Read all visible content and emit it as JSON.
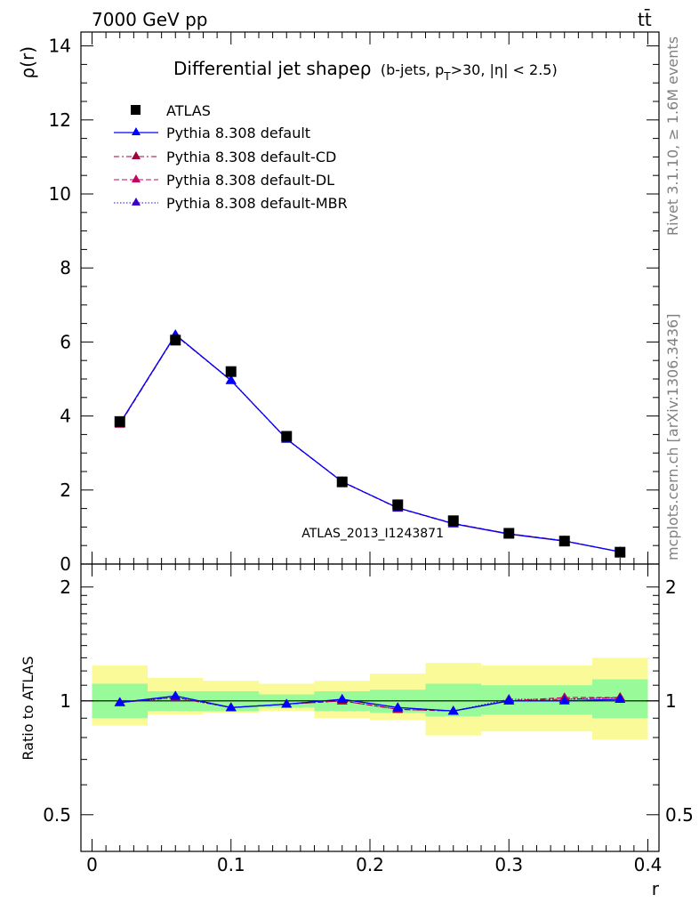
{
  "header": {
    "left": "7000 GeV pp",
    "right": "tt̄"
  },
  "side_labels": {
    "rivet": "Rivet 3.1.10, ≥ 1.6M events",
    "mcplots": "mcplots.cern.ch [arXiv:1306.3436]"
  },
  "colors": {
    "atlas": "#000000",
    "default": "#0000ff",
    "default_cd": "#a0003c",
    "default_dl": "#c80064",
    "default_mbr": "#3c00c8",
    "band_inner": "#98fa98",
    "band_outer": "#fafa98",
    "watermark": "#a0a0a0"
  },
  "chart_data": [
    {
      "type": "line",
      "title": "Differential jet shapeρ (b-jets, p_T>30, |η| < 2.5)",
      "title_main": "Differential jet shapeρ",
      "title_sub_a": "(b-jets, p",
      "title_sub_b": "T",
      "title_sub_c": ">30, |η| < 2.5)",
      "ylabel": "ρ(r)",
      "xlim": [
        0,
        0.4
      ],
      "ylim": [
        0,
        14.5
      ],
      "yticks": [
        0,
        2,
        4,
        6,
        8,
        10,
        12,
        14
      ],
      "watermark": "ATLAS_2013_I1243871",
      "x": [
        0.02,
        0.06,
        0.1,
        0.14,
        0.18,
        0.22,
        0.26,
        0.3,
        0.34,
        0.38
      ],
      "legend": {
        "position": "top-left"
      },
      "series": [
        {
          "name": "ATLAS",
          "style": "data",
          "values": [
            3.85,
            6.05,
            5.2,
            3.45,
            2.22,
            1.6,
            1.17,
            0.83,
            0.62,
            0.32
          ]
        },
        {
          "name": "Pythia 8.308 default",
          "style": "solid",
          "values": [
            3.8,
            6.2,
            4.96,
            3.38,
            2.22,
            1.52,
            1.09,
            0.81,
            0.62,
            0.33
          ]
        },
        {
          "name": "Pythia 8.308 default-CD",
          "style": "dashdot",
          "values": [
            3.78,
            6.18,
            4.96,
            3.37,
            2.22,
            1.51,
            1.09,
            0.82,
            0.62,
            0.33
          ]
        },
        {
          "name": "Pythia 8.308 default-DL",
          "style": "dashed",
          "values": [
            3.79,
            6.19,
            4.96,
            3.38,
            2.23,
            1.52,
            1.1,
            0.82,
            0.63,
            0.33
          ]
        },
        {
          "name": "Pythia 8.308 default-MBR",
          "style": "dotted",
          "values": [
            3.8,
            6.19,
            4.97,
            3.38,
            2.22,
            1.52,
            1.09,
            0.82,
            0.63,
            0.33
          ]
        }
      ]
    },
    {
      "type": "line",
      "ylabel": "Ratio to ATLAS",
      "xlabel": "r",
      "xlim": [
        0,
        0.4
      ],
      "ylim": [
        0.4,
        2.3
      ],
      "xticks": [
        0,
        0.1,
        0.2,
        0.3,
        0.4
      ],
      "xtick_labels": [
        "0",
        "0.1",
        "0.2",
        "0.3",
        "0.4"
      ],
      "yticks": [
        0.5,
        1,
        2
      ],
      "ytick_labels": [
        "0.5",
        "1",
        "2"
      ],
      "bins": [
        [
          0.0,
          0.04
        ],
        [
          0.04,
          0.08
        ],
        [
          0.08,
          0.12
        ],
        [
          0.12,
          0.16
        ],
        [
          0.16,
          0.2
        ],
        [
          0.2,
          0.24
        ],
        [
          0.24,
          0.28
        ],
        [
          0.28,
          0.32
        ],
        [
          0.32,
          0.36
        ],
        [
          0.36,
          0.4
        ]
      ],
      "band_inner": [
        [
          0.9,
          1.11
        ],
        [
          0.94,
          1.06
        ],
        [
          0.94,
          1.06
        ],
        [
          0.96,
          1.04
        ],
        [
          0.94,
          1.06
        ],
        [
          0.93,
          1.07
        ],
        [
          0.91,
          1.11
        ],
        [
          0.92,
          1.1
        ],
        [
          0.92,
          1.1
        ],
        [
          0.9,
          1.14
        ]
      ],
      "band_outer": [
        [
          0.86,
          1.24
        ],
        [
          0.92,
          1.15
        ],
        [
          0.93,
          1.13
        ],
        [
          0.94,
          1.11
        ],
        [
          0.9,
          1.13
        ],
        [
          0.89,
          1.18
        ],
        [
          0.81,
          1.26
        ],
        [
          0.83,
          1.24
        ],
        [
          0.83,
          1.24
        ],
        [
          0.79,
          1.3
        ]
      ],
      "series": [
        {
          "name": "Pythia 8.308 default",
          "values": [
            0.99,
            1.03,
            0.96,
            0.98,
            1.01,
            0.96,
            0.94,
            1.0,
            1.0,
            1.01
          ]
        },
        {
          "name": "Pythia 8.308 default-CD",
          "values": [
            0.99,
            1.02,
            0.96,
            0.98,
            1.0,
            0.95,
            0.94,
            1.0,
            1.01,
            1.02
          ]
        },
        {
          "name": "Pythia 8.308 default-DL",
          "values": [
            0.99,
            1.03,
            0.96,
            0.98,
            1.0,
            0.95,
            0.94,
            1.0,
            1.02,
            1.02
          ]
        },
        {
          "name": "Pythia 8.308 default-MBR",
          "values": [
            0.99,
            1.02,
            0.96,
            0.98,
            1.01,
            0.96,
            0.94,
            1.01,
            1.01,
            1.02
          ]
        }
      ]
    }
  ]
}
